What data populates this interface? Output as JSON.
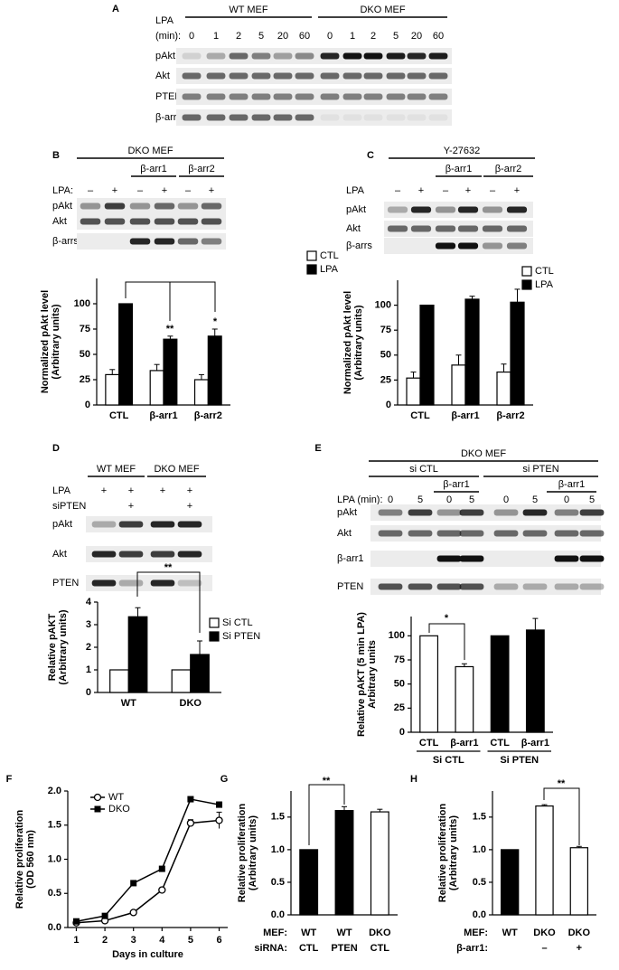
{
  "panel_letters": [
    "A",
    "B",
    "C",
    "D",
    "E",
    "F",
    "G",
    "H"
  ],
  "blots": {
    "A": {
      "header_rows": [
        "LPA",
        "(min):"
      ],
      "groups": [
        "WT MEF",
        "DKO MEF"
      ],
      "lanes": [
        0,
        1,
        2,
        5,
        20,
        60,
        0,
        1,
        2,
        5,
        20,
        60
      ],
      "rows": [
        "pAkt",
        "Akt",
        "PTEN",
        "β-arrs"
      ]
    },
    "B": {
      "title": "DKO MEF",
      "groups": [
        "β-arr1",
        "β-arr2"
      ],
      "treatment": "LPA:",
      "lanes": [
        "–",
        "+",
        "–",
        "+",
        "–",
        "+"
      ],
      "rows": [
        "pAkt",
        "Akt",
        "β-arrs"
      ]
    },
    "C": {
      "title": "Y-27632",
      "groups": [
        "β-arr1",
        "β-arr2"
      ],
      "treatment": "LPA",
      "lanes": [
        "–",
        "+",
        "–",
        "+",
        "–",
        "+"
      ],
      "rows": [
        "pAkt",
        "Akt",
        "β-arrs"
      ]
    },
    "D": {
      "groups": [
        "WT MEF",
        "DKO MEF"
      ],
      "treatments": [
        {
          "label": "LPA",
          "lanes": [
            "+",
            "+",
            "+",
            "+"
          ]
        },
        {
          "label": "siPTEN",
          "lanes": [
            null,
            "+",
            null,
            "+"
          ]
        }
      ],
      "rows": [
        "pAkt",
        "Akt",
        "PTEN"
      ]
    },
    "E": {
      "title": "DKO MEF",
      "groups": [
        "si CTL",
        "si PTEN"
      ],
      "subgroups": [
        "β-arr1",
        "β-arr1"
      ],
      "treatment": "LPA (min):",
      "lanes": [
        0,
        5,
        0,
        5,
        0,
        5,
        0,
        5
      ],
      "rows": [
        "pAkt",
        "Akt",
        "β-arr1",
        "PTEN"
      ]
    }
  },
  "chart_data": [
    {
      "type": "bar",
      "ylabel": [
        "Normalized pAkt level",
        "(Arbitrary units)"
      ],
      "categories": [
        "CTL",
        "β-arr1",
        "β-arr2"
      ],
      "series": [
        {
          "name": "CTL",
          "color": "#ffffff",
          "values": [
            30,
            34,
            25
          ],
          "errors": [
            5,
            6,
            5
          ]
        },
        {
          "name": "LPA",
          "color": "#000000",
          "values": [
            100,
            65,
            68
          ],
          "errors": [
            null,
            3,
            7
          ]
        }
      ],
      "ylim": [
        0,
        125
      ],
      "yticks": [
        0,
        25,
        50,
        75,
        100
      ],
      "annotations": [
        "**",
        "*"
      ]
    },
    {
      "type": "bar",
      "ylabel": [
        "Normalized pAkt level",
        "(Arbitrary units)"
      ],
      "categories": [
        "CTL",
        "β-arr1",
        "β-arr2"
      ],
      "series": [
        {
          "name": "CTL",
          "color": "#ffffff",
          "values": [
            27,
            40,
            33
          ],
          "errors": [
            6,
            10,
            8
          ]
        },
        {
          "name": "LPA",
          "color": "#000000",
          "values": [
            100,
            106,
            103
          ],
          "errors": [
            null,
            3,
            13
          ]
        }
      ],
      "ylim": [
        0,
        125
      ],
      "yticks": [
        0,
        25,
        50,
        75,
        100
      ]
    },
    {
      "type": "bar",
      "ylabel": [
        "Relative pAKT",
        "(Arbitrary units)"
      ],
      "categories": [
        "WT",
        "DKO"
      ],
      "series": [
        {
          "name": "Si CTL",
          "color": "#ffffff",
          "values": [
            1,
            1
          ],
          "errors": [
            null,
            null
          ]
        },
        {
          "name": "Si PTEN",
          "color": "#000000",
          "values": [
            3.35,
            1.68
          ],
          "errors": [
            0.4,
            0.6
          ]
        }
      ],
      "ylim": [
        0,
        4
      ],
      "yticks": [
        0,
        1,
        2,
        3,
        4
      ],
      "annotations": [
        "**"
      ]
    },
    {
      "type": "bar",
      "ylabel": [
        "Relative pAKT (5 min LPA)",
        "Arbitrary units"
      ],
      "categories": [
        "CTL",
        "β-arr1",
        "CTL",
        "β-arr1"
      ],
      "groups": [
        "Si CTL",
        "Si PTEN"
      ],
      "series": [
        {
          "colors": [
            "#ffffff",
            "#ffffff",
            "#000000",
            "#000000"
          ],
          "values": [
            100,
            68,
            100,
            106
          ],
          "errors": [
            null,
            3,
            null,
            12
          ]
        }
      ],
      "ylim": [
        0,
        120
      ],
      "yticks": [
        0,
        25,
        50,
        75,
        100
      ],
      "annotations": [
        "*"
      ]
    },
    {
      "type": "line",
      "ylabel": [
        "Relative proliferation",
        "(OD 560 nm)"
      ],
      "xlabel": "Days in culture",
      "x": [
        1,
        2,
        3,
        4,
        5,
        6
      ],
      "series": [
        {
          "name": "WT",
          "marker": "circle-open",
          "color": "#000000",
          "values": [
            0.07,
            0.1,
            0.22,
            0.55,
            1.53,
            1.57
          ],
          "errors": [
            null,
            null,
            0.02,
            0.02,
            0.05,
            0.12
          ]
        },
        {
          "name": "DKO",
          "marker": "square",
          "color": "#000000",
          "values": [
            0.09,
            0.17,
            0.65,
            0.86,
            1.88,
            1.8
          ],
          "errors": [
            null,
            0.02,
            0.03,
            0.02,
            0.03,
            0.04
          ]
        }
      ],
      "xlim": [
        0.7,
        6.3
      ],
      "xticks": [
        1,
        2,
        3,
        4,
        5,
        6
      ],
      "ylim": [
        0,
        2
      ],
      "yticks": [
        {
          "value": 0,
          "label": "0.0"
        },
        0.5,
        {
          "value": 1,
          "label": "1.0"
        },
        1.5,
        {
          "value": 2,
          "label": "2.0"
        }
      ]
    },
    {
      "type": "bar",
      "ylabel": [
        "Relative proliferation",
        "(Arbitrary units)"
      ],
      "row_labels": [
        "MEF:",
        "siRNA:"
      ],
      "rows": [
        [
          "WT",
          "WT",
          "DKO"
        ],
        [
          "CTL",
          "PTEN",
          "CTL"
        ]
      ],
      "series": [
        {
          "colors": [
            "#000000",
            "#000000",
            "#ffffff"
          ],
          "values": [
            1,
            1.6,
            1.58
          ],
          "errors": [
            null,
            0.06,
            0.04
          ]
        }
      ],
      "ylim": [
        0,
        1.9
      ],
      "yticks": [
        {
          "value": 0,
          "label": "0.0"
        },
        0.5,
        {
          "value": 1,
          "label": "1.0"
        },
        1.5
      ],
      "annotations": [
        "**"
      ]
    },
    {
      "type": "bar",
      "ylabel": [
        "Relative proliferation",
        "(Arbitrary units)"
      ],
      "row_labels": [
        "MEF:",
        "β-arr1:"
      ],
      "rows": [
        [
          "WT",
          "DKO",
          "DKO"
        ],
        [
          null,
          "–",
          "+"
        ]
      ],
      "series": [
        {
          "colors": [
            "#000000",
            "#ffffff",
            "#ffffff"
          ],
          "values": [
            1,
            1.67,
            1.03
          ],
          "errors": [
            null,
            0.02,
            0.02
          ]
        }
      ],
      "ylim": [
        0,
        1.9
      ],
      "yticks": [
        {
          "value": 0,
          "label": "0.0"
        },
        0.5,
        {
          "value": 1,
          "label": "1.0"
        },
        1.5
      ],
      "annotations": [
        "**"
      ]
    }
  ]
}
